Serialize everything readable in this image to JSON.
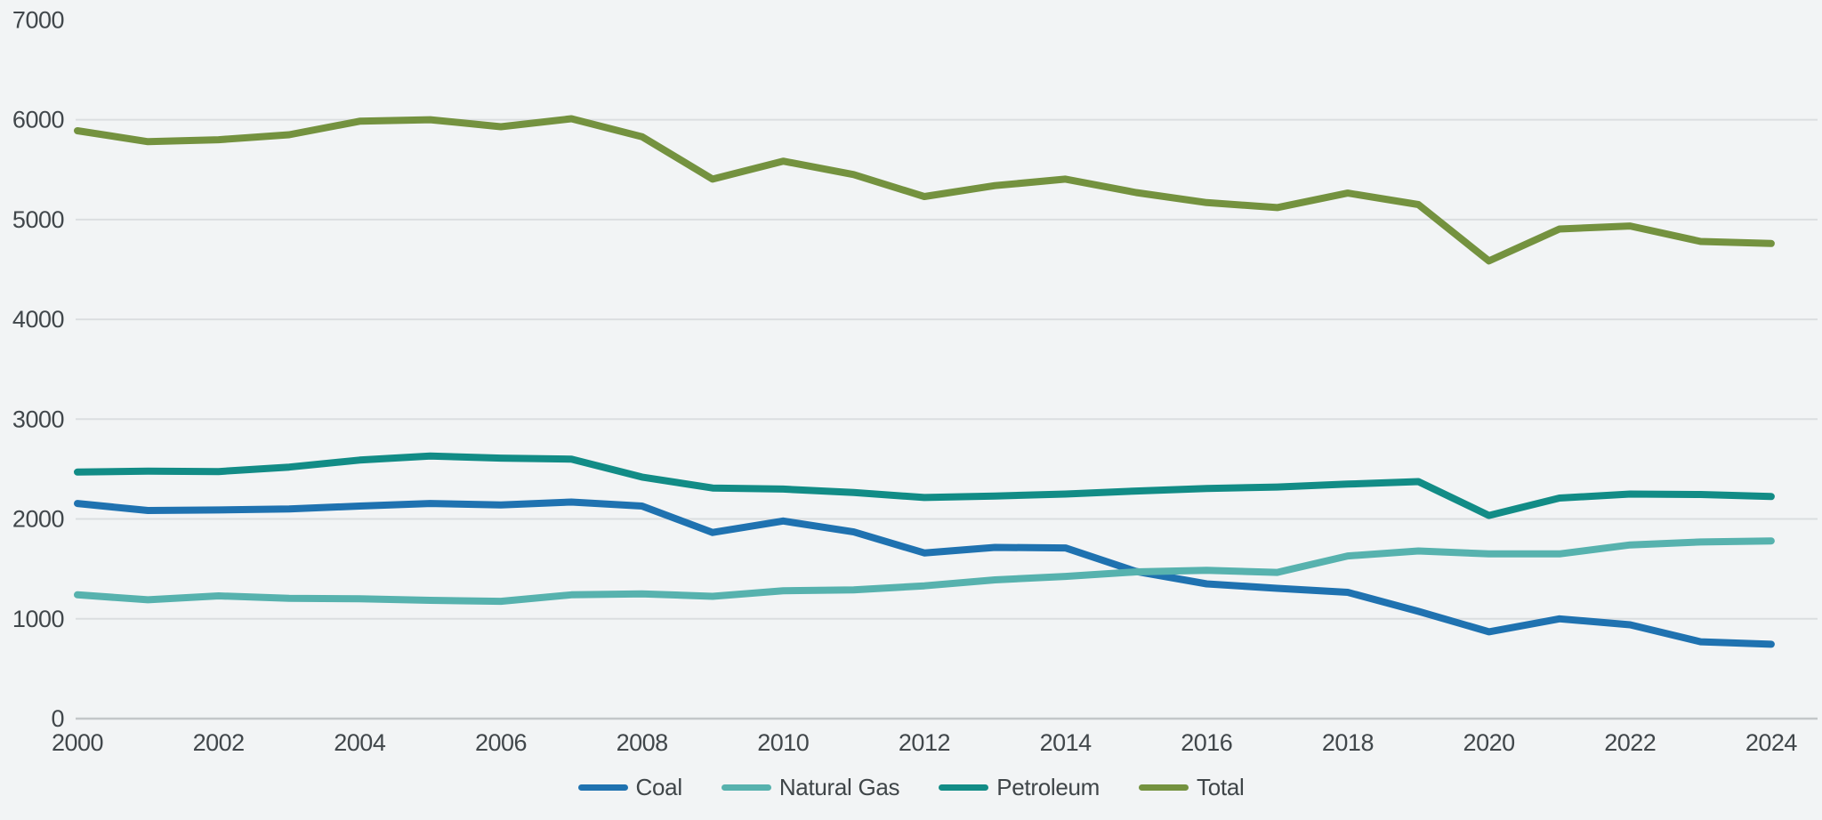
{
  "chart": {
    "background_color": "#f2f4f5",
    "gridline_color": "#dbdee0",
    "axis_line_color": "#c3c7c9",
    "tick_label_color": "#41474b",
    "y_tick_labels": [
      "0",
      "1000",
      "2000",
      "3000",
      "4000",
      "5000",
      "6000",
      "7000"
    ],
    "x_tick_labels": [
      "2000",
      "2002",
      "2004",
      "2006",
      "2008",
      "2010",
      "2012",
      "2014",
      "2016",
      "2018",
      "2020",
      "2022",
      "2024"
    ]
  },
  "chart_data": {
    "type": "line",
    "title": "",
    "xlabel": "",
    "ylabel": "",
    "xlim": [
      2000,
      2024
    ],
    "ylim": [
      0,
      7000
    ],
    "y_ticks": [
      0,
      1000,
      2000,
      3000,
      4000,
      5000,
      6000,
      7000
    ],
    "x_ticks": [
      2000,
      2002,
      2004,
      2006,
      2008,
      2010,
      2012,
      2014,
      2016,
      2018,
      2020,
      2022,
      2024
    ],
    "grid": "horizontal",
    "legend_position": "bottom",
    "x": [
      2000,
      2001,
      2002,
      2003,
      2004,
      2005,
      2006,
      2007,
      2008,
      2009,
      2010,
      2011,
      2012,
      2013,
      2014,
      2015,
      2016,
      2017,
      2018,
      2019,
      2020,
      2021,
      2022,
      2023,
      2024
    ],
    "series": [
      {
        "name": "Coal",
        "color": "#1f72b0",
        "values": [
          2155,
          2085,
          2090,
          2100,
          2130,
          2155,
          2140,
          2170,
          2130,
          1865,
          1980,
          1870,
          1660,
          1715,
          1710,
          1475,
          1350,
          1305,
          1265,
          1075,
          870,
          1000,
          940,
          770,
          745
        ]
      },
      {
        "name": "Natural Gas",
        "color": "#57b2ae",
        "values": [
          1240,
          1190,
          1230,
          1205,
          1200,
          1185,
          1175,
          1240,
          1250,
          1225,
          1280,
          1290,
          1330,
          1390,
          1425,
          1470,
          1485,
          1465,
          1630,
          1680,
          1650,
          1650,
          1740,
          1770,
          1780
        ]
      },
      {
        "name": "Petroleum",
        "color": "#128c86",
        "values": [
          2470,
          2480,
          2475,
          2520,
          2590,
          2630,
          2610,
          2600,
          2420,
          2310,
          2300,
          2265,
          2215,
          2230,
          2250,
          2280,
          2305,
          2320,
          2350,
          2375,
          2035,
          2210,
          2250,
          2245,
          2225
        ]
      },
      {
        "name": "Total",
        "color": "#74923f",
        "values": [
          5890,
          5780,
          5800,
          5850,
          5985,
          6000,
          5930,
          6010,
          5830,
          5405,
          5585,
          5450,
          5230,
          5340,
          5405,
          5270,
          5170,
          5120,
          5265,
          5150,
          4585,
          4905,
          4935,
          4780,
          4760
        ]
      }
    ]
  }
}
